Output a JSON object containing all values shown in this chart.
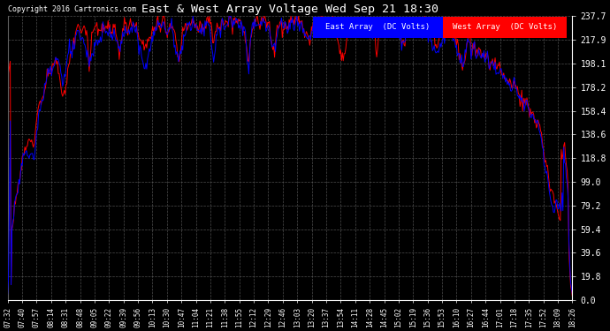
{
  "title": "East & West Array Voltage Wed Sep 21 18:30",
  "copyright": "Copyright 2016 Cartronics.com",
  "legend_east": "East Array  (DC Volts)",
  "legend_west": "West Array  (DC Volts)",
  "east_color": "#0000ff",
  "west_color": "#ff0000",
  "bg_color": "#000000",
  "plot_bg_color": "#000000",
  "grid_color": "#606060",
  "text_color": "#ffffff",
  "yticks": [
    0.0,
    19.8,
    39.6,
    59.4,
    79.2,
    99.0,
    118.8,
    138.6,
    158.4,
    178.2,
    198.1,
    217.9,
    237.7
  ],
  "xtick_labels": [
    "07:32",
    "07:40",
    "07:57",
    "08:14",
    "08:31",
    "08:48",
    "09:05",
    "09:22",
    "09:39",
    "09:56",
    "10:13",
    "10:30",
    "10:47",
    "11:04",
    "11:21",
    "11:38",
    "11:55",
    "12:12",
    "12:29",
    "12:46",
    "13:03",
    "13:20",
    "13:37",
    "13:54",
    "14:11",
    "14:28",
    "14:45",
    "15:02",
    "15:19",
    "15:36",
    "15:53",
    "16:10",
    "16:27",
    "16:44",
    "17:01",
    "17:18",
    "17:35",
    "17:52",
    "18:09",
    "18:26"
  ],
  "ymin": 0.0,
  "ymax": 237.7,
  "figwidth": 6.9,
  "figheight": 3.75,
  "dpi": 100
}
